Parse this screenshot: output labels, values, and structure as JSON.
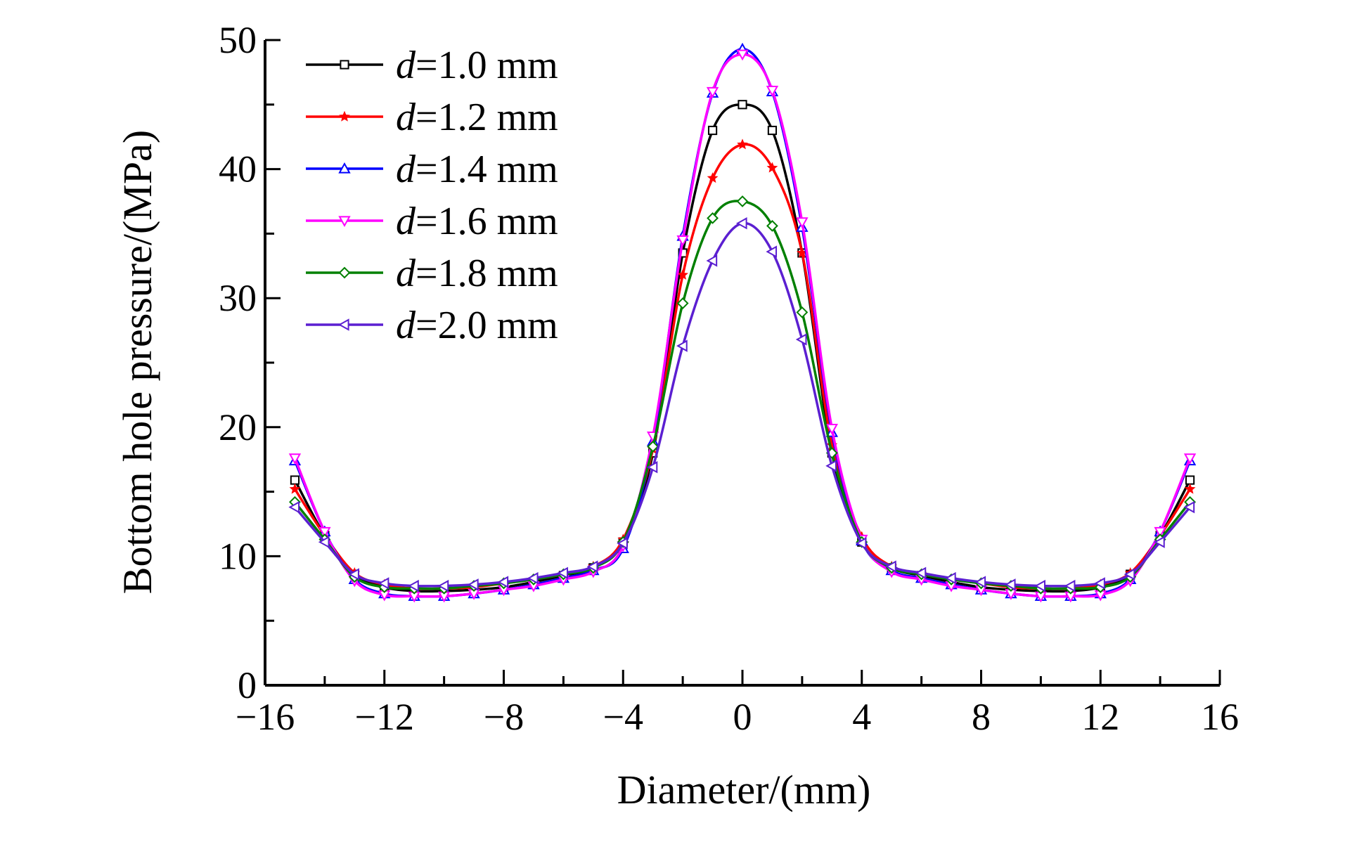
{
  "chart_data": {
    "type": "line",
    "xlabel": "Diameter/(mm)",
    "ylabel": "Bottom hole pressure/(MPa)",
    "xlim": [
      -16,
      16
    ],
    "ylim": [
      0,
      50
    ],
    "xticks": [
      -16,
      -12,
      -8,
      -4,
      0,
      4,
      8,
      12,
      16
    ],
    "xtick_labels": [
      "−16",
      "−12",
      "−8",
      "−4",
      "0",
      "4",
      "8",
      "12",
      "16"
    ],
    "yticks": [
      0,
      10,
      20,
      30,
      40,
      50
    ],
    "ytick_labels": [
      "0",
      "10",
      "20",
      "30",
      "40",
      "50"
    ],
    "grid": false,
    "legend_position": "top-left",
    "x": [
      -15,
      -14,
      -13,
      -12,
      -11,
      -10,
      -9,
      -8,
      -7,
      -6,
      -5,
      -4,
      -3,
      -2,
      -1,
      0,
      1,
      2,
      3,
      4,
      5,
      6,
      7,
      8,
      9,
      10,
      11,
      12,
      13,
      14,
      15
    ],
    "series": [
      {
        "name_prefix": "d",
        "name_suffix": "=1.0 mm",
        "color": "#000000",
        "marker": "square",
        "values": [
          15.9,
          11.6,
          8.6,
          7.6,
          7.3,
          7.3,
          7.4,
          7.6,
          8.0,
          8.5,
          9.1,
          11.1,
          18.0,
          33.5,
          43.0,
          45.0,
          43.0,
          33.5,
          18.0,
          11.1,
          9.1,
          8.5,
          8.0,
          7.6,
          7.4,
          7.3,
          7.3,
          7.6,
          8.6,
          11.6,
          15.9
        ]
      },
      {
        "name_prefix": "d",
        "name_suffix": "=1.2 mm",
        "color": "#ff0000",
        "marker": "star",
        "values": [
          15.2,
          11.6,
          8.7,
          7.8,
          7.5,
          7.5,
          7.6,
          7.9,
          8.2,
          8.6,
          9.2,
          11.3,
          18.3,
          31.8,
          39.3,
          41.9,
          40.1,
          33.5,
          18.6,
          11.5,
          9.2,
          8.6,
          8.2,
          7.9,
          7.6,
          7.5,
          7.5,
          7.8,
          8.7,
          11.6,
          15.2
        ]
      },
      {
        "name_prefix": "d",
        "name_suffix": "=1.4 mm",
        "color": "#0000ff",
        "marker": "triangle-up",
        "values": [
          17.4,
          11.9,
          8.2,
          7.1,
          6.9,
          6.9,
          7.1,
          7.4,
          7.8,
          8.3,
          8.9,
          10.6,
          18.9,
          34.8,
          45.9,
          49.3,
          46.0,
          35.5,
          19.6,
          11.2,
          8.9,
          8.3,
          7.8,
          7.4,
          7.1,
          6.9,
          6.9,
          7.1,
          8.2,
          11.9,
          17.4
        ]
      },
      {
        "name_prefix": "d",
        "name_suffix": "=1.6 mm",
        "color": "#ff00ff",
        "marker": "triangle-down",
        "values": [
          17.6,
          11.9,
          8.1,
          7.0,
          6.9,
          6.9,
          7.1,
          7.4,
          7.7,
          8.2,
          8.8,
          10.8,
          19.3,
          34.5,
          46.0,
          48.9,
          46.1,
          35.9,
          19.9,
          11.3,
          8.8,
          8.2,
          7.7,
          7.4,
          7.1,
          6.9,
          6.9,
          7.0,
          8.1,
          11.9,
          17.6
        ]
      },
      {
        "name_prefix": "d",
        "name_suffix": "=1.8 mm",
        "color": "#008000",
        "marker": "diamond",
        "values": [
          14.2,
          11.3,
          8.4,
          7.6,
          7.5,
          7.5,
          7.7,
          7.9,
          8.2,
          8.6,
          9.1,
          11.1,
          18.5,
          29.6,
          36.2,
          37.5,
          35.6,
          28.9,
          18.0,
          11.1,
          9.1,
          8.6,
          8.2,
          7.9,
          7.7,
          7.5,
          7.5,
          7.6,
          8.4,
          11.3,
          14.2
        ]
      },
      {
        "name_prefix": "d",
        "name_suffix": "=2.0 mm",
        "color": "#5b1fd1",
        "marker": "triangle-left",
        "values": [
          13.8,
          11.1,
          8.6,
          7.9,
          7.7,
          7.7,
          7.8,
          8.0,
          8.3,
          8.7,
          9.2,
          11.0,
          16.9,
          26.3,
          32.9,
          35.8,
          33.6,
          26.8,
          17.0,
          11.0,
          9.2,
          8.7,
          8.3,
          8.0,
          7.8,
          7.7,
          7.7,
          7.9,
          8.6,
          11.1,
          13.8
        ]
      }
    ]
  }
}
